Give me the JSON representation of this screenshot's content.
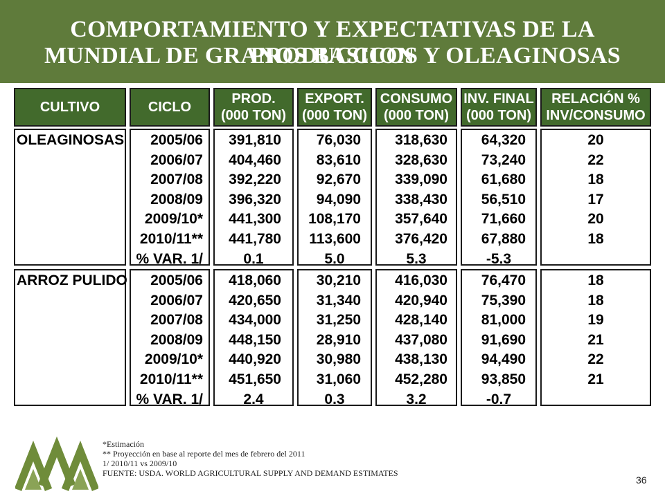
{
  "title": {
    "line1": "COMPORTAMIENTO Y EXPECTATIVAS DE LA PRODUCCION",
    "line2": "MUNDIAL DE GRANOS BASICOS Y OLEAGINOSAS"
  },
  "colors": {
    "banner": "#5f7b3b",
    "header_bg": "#426a2c",
    "logo_green": "#6f8c3a"
  },
  "headers": [
    {
      "l1": "CULTIVO",
      "l2": ""
    },
    {
      "l1": "CICLO",
      "l2": ""
    },
    {
      "l1": "PROD.",
      "l2": "(000 TON)"
    },
    {
      "l1": "EXPORT.",
      "l2": "(000 TON)"
    },
    {
      "l1": "CONSUMO",
      "l2": "(000 TON)"
    },
    {
      "l1": "INV. FINAL",
      "l2": "(000 TON)"
    },
    {
      "l1": "RELACIÓN %",
      "l2": "INV/CONSUMO"
    }
  ],
  "groups": [
    {
      "crop": "OLEAGINOSAS",
      "rows": [
        {
          "ciclo": "2005/06",
          "prod": "391,810",
          "export": "76,030",
          "consumo": "318,630",
          "inv": "64,320",
          "rel": "20"
        },
        {
          "ciclo": "2006/07",
          "prod": "404,460",
          "export": "83,610",
          "consumo": "328,630",
          "inv": "73,240",
          "rel": "22"
        },
        {
          "ciclo": "2007/08",
          "prod": "392,220",
          "export": "92,670",
          "consumo": "339,090",
          "inv": "61,680",
          "rel": "18"
        },
        {
          "ciclo": "2008/09",
          "prod": "396,320",
          "export": "94,090",
          "consumo": "338,430",
          "inv": "56,510",
          "rel": "17"
        },
        {
          "ciclo": "2009/10*",
          "prod": "441,300",
          "export": "108,170",
          "consumo": "357,640",
          "inv": "71,660",
          "rel": "20"
        },
        {
          "ciclo": "2010/11**",
          "prod": "441,780",
          "export": "113,600",
          "consumo": "376,420",
          "inv": "67,880",
          "rel": "18"
        },
        {
          "ciclo": "% VAR. 1/",
          "prod": "0.1",
          "export": "5.0",
          "consumo": "5.3",
          "inv": "-5.3",
          "rel": ""
        }
      ]
    },
    {
      "crop": "ARROZ PULIDO",
      "rows": [
        {
          "ciclo": "2005/06",
          "prod": "418,060",
          "export": "30,210",
          "consumo": "416,030",
          "inv": "76,470",
          "rel": "18"
        },
        {
          "ciclo": "2006/07",
          "prod": "420,650",
          "export": "31,340",
          "consumo": "420,940",
          "inv": "75,390",
          "rel": "18"
        },
        {
          "ciclo": "2007/08",
          "prod": "434,000",
          "export": "31,250",
          "consumo": "428,140",
          "inv": "81,000",
          "rel": "19"
        },
        {
          "ciclo": "2008/09",
          "prod": "448,150",
          "export": "28,910",
          "consumo": "437,080",
          "inv": "91,690",
          "rel": "21"
        },
        {
          "ciclo": "2009/10*",
          "prod": "440,920",
          "export": "30,980",
          "consumo": "438,130",
          "inv": "94,490",
          "rel": "22"
        },
        {
          "ciclo": "2010/11**",
          "prod": "451,650",
          "export": "31,060",
          "consumo": "452,280",
          "inv": "93,850",
          "rel": "21"
        },
        {
          "ciclo": "% VAR. 1/",
          "prod": "2.4",
          "export": "0.3",
          "consumo": "3.2",
          "inv": "-0.7",
          "rel": ""
        }
      ]
    }
  ],
  "notes": [
    "*Estimación",
    "** Proyección en base al reporte  del mes de febrero del 2011",
    "1/ 2010/11 vs 2009/10",
    "FUENTE: USDA. WORLD AGRICULTURAL SUPPLY AND DEMAND ESTIMATES"
  ],
  "page_number": "36",
  "logo_icon": "mountains-logo-icon"
}
